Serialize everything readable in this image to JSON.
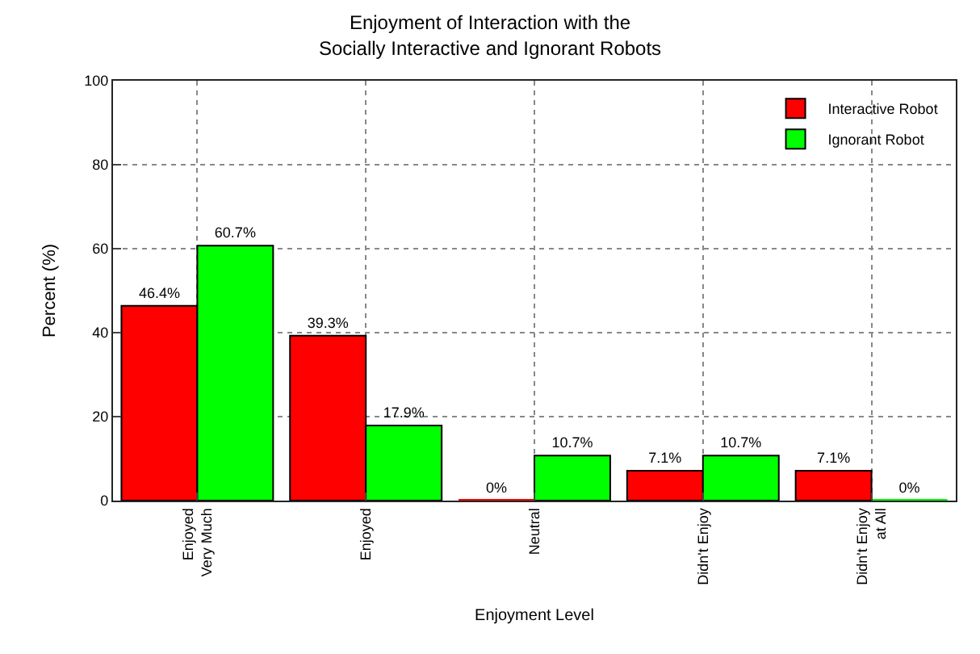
{
  "chart_data": {
    "type": "bar",
    "title": "Enjoyment of Interaction with the\nSocially Interactive and Ignorant Robots",
    "xlabel": "Enjoyment Level",
    "ylabel": "Percent (%)",
    "categories": [
      "Enjoyed\nVery Much",
      "Enjoyed",
      "Neutral",
      "Didn't Enjoy",
      "Didn't Enjoy\nat All"
    ],
    "series": [
      {
        "name": "Interactive Robot",
        "color": "#ff0000",
        "values": [
          46.4,
          39.3,
          0,
          7.1,
          7.1
        ],
        "value_labels": [
          "46.4%",
          "39.3%",
          "0%",
          "7.1%",
          "7.1%"
        ]
      },
      {
        "name": "Ignorant Robot",
        "color": "#00ff00",
        "values": [
          60.7,
          17.9,
          10.7,
          10.7,
          0
        ],
        "value_labels": [
          "60.7%",
          "17.9%",
          "10.7%",
          "10.7%",
          "0%"
        ]
      }
    ],
    "ylim": [
      0,
      100
    ],
    "yticks": [
      0,
      20,
      40,
      60,
      80,
      100
    ],
    "grid": true,
    "legend": "top right"
  }
}
